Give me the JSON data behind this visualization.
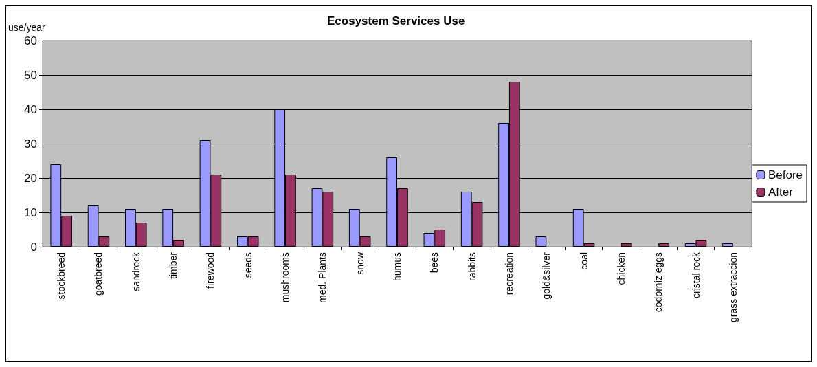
{
  "chart_data": {
    "type": "bar",
    "title": "Ecosystem Services Use",
    "ylabel": "use/year",
    "categories": [
      "stockbreed",
      "goatbreed",
      "sandrock",
      "timber",
      "firewood",
      "seeds",
      "mushrooms",
      "med. Plants",
      "snow",
      "humus",
      "bees",
      "rabbits",
      "recreation",
      "gold&silver",
      "coal",
      "chicken",
      "codorniz eggs",
      "cristal rock",
      "grass extraccion"
    ],
    "series": [
      {
        "name": "Before",
        "color": "#9999ff",
        "values": [
          24,
          12,
          11,
          11,
          31,
          3,
          40,
          17,
          11,
          26,
          4,
          16,
          36,
          3,
          11,
          0,
          0,
          1,
          1
        ]
      },
      {
        "name": "After",
        "color": "#993366",
        "values": [
          9,
          3,
          7,
          2,
          21,
          3,
          21,
          16,
          3,
          17,
          5,
          13,
          48,
          0,
          1,
          1,
          1,
          2,
          0
        ]
      }
    ],
    "ylim": [
      0,
      60
    ],
    "yticks": [
      0,
      10,
      20,
      30,
      40,
      50,
      60
    ],
    "grid": "y",
    "legend": "right"
  }
}
